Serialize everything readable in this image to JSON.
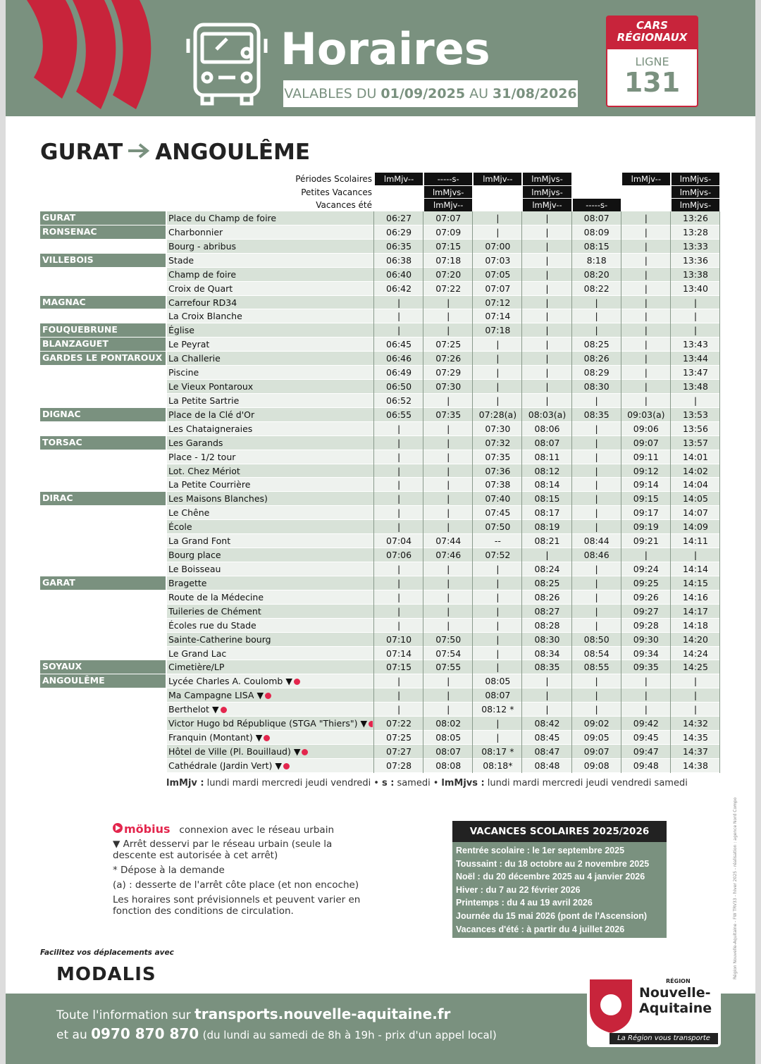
{
  "header": {
    "title": "Horaires",
    "validity": {
      "prefix": "VALABLES DU",
      "from": "01/09/2025",
      "middle": "AU",
      "to": "31/08/2026"
    },
    "badge": {
      "top": "CARS RÉGIONAUX",
      "label": "LIGNE",
      "number": "131"
    }
  },
  "route": {
    "from": "GURAT",
    "to": "ANGOULÊME"
  },
  "table": {
    "periods": [
      {
        "label": "Périodes Scolaires",
        "values": [
          "lmMjv--",
          "-----s-",
          "lmMjv--",
          "lmMjvs-",
          null,
          "lmMjv--",
          "lmMjvs-"
        ]
      },
      {
        "label": "Petites Vacances",
        "values": [
          null,
          "lmMjvs-",
          null,
          "lmMjvs-",
          null,
          null,
          "lmMjvs-"
        ]
      },
      {
        "label": "Vacances été",
        "values": [
          null,
          "lmMjv--",
          null,
          "lmMjv--",
          "-----s-",
          null,
          "lmMjvs-"
        ]
      }
    ],
    "rows": [
      {
        "town": "GURAT",
        "stop": "Place du Champ de foire",
        "times": [
          "06:27",
          "07:07",
          "|",
          "|",
          "08:07",
          "|",
          "13:26"
        ]
      },
      {
        "town": "RONSENAC",
        "stop": "Charbonnier",
        "times": [
          "06:29",
          "07:09",
          "|",
          "|",
          "08:09",
          "|",
          "13:28"
        ]
      },
      {
        "town": null,
        "stop": "Bourg - abribus",
        "times": [
          "06:35",
          "07:15",
          "07:00",
          "|",
          "08:15",
          "|",
          "13:33"
        ]
      },
      {
        "town": "VILLEBOIS",
        "stop": "Stade",
        "times": [
          "06:38",
          "07:18",
          "07:03",
          "|",
          "8:18",
          "|",
          "13:36"
        ]
      },
      {
        "town": null,
        "stop": "Champ de foire",
        "times": [
          "06:40",
          "07:20",
          "07:05",
          "|",
          "08:20",
          "|",
          "13:38"
        ]
      },
      {
        "town": null,
        "stop": "Croix de Quart",
        "times": [
          "06:42",
          "07:22",
          "07:07",
          "|",
          "08:22",
          "|",
          "13:40"
        ]
      },
      {
        "town": "MAGNAC",
        "stop": "Carrefour RD34",
        "times": [
          "|",
          "|",
          "07:12",
          "|",
          "|",
          "|",
          "|"
        ]
      },
      {
        "town": null,
        "stop": "La Croix Blanche",
        "times": [
          "|",
          "|",
          "07:14",
          "|",
          "|",
          "|",
          "|"
        ]
      },
      {
        "town": "FOUQUEBRUNE",
        "stop": "Église",
        "times": [
          "|",
          "|",
          "07:18",
          "|",
          "|",
          "|",
          "|"
        ]
      },
      {
        "town": "BLANZAGUET",
        "stop": "Le Peyrat",
        "times": [
          "06:45",
          "07:25",
          "|",
          "|",
          "08:25",
          "|",
          "13:43"
        ]
      },
      {
        "town": "GARDES LE PONTAROUX",
        "stop": "La Challerie",
        "times": [
          "06:46",
          "07:26",
          "|",
          "|",
          "08:26",
          "|",
          "13:44"
        ]
      },
      {
        "town": null,
        "stop": "Piscine",
        "times": [
          "06:49",
          "07:29",
          "|",
          "|",
          "08:29",
          "|",
          "13:47"
        ]
      },
      {
        "town": null,
        "stop": "Le Vieux Pontaroux",
        "times": [
          "06:50",
          "07:30",
          "|",
          "|",
          "08:30",
          "|",
          "13:48"
        ]
      },
      {
        "town": null,
        "stop": "La Petite Sartrie",
        "times": [
          "06:52",
          "|",
          "|",
          "|",
          "|",
          "|",
          "|"
        ]
      },
      {
        "town": "DIGNAC",
        "stop": "Place de la Clé d'Or",
        "times": [
          "06:55",
          "07:35",
          "07:28(a)",
          "08:03(a)",
          "08:35",
          "09:03(a)",
          "13:53"
        ]
      },
      {
        "town": null,
        "stop": "Les Chataigneraies",
        "times": [
          "|",
          "|",
          "07:30",
          "08:06",
          "|",
          "09:06",
          "13:56"
        ]
      },
      {
        "town": "TORSAC",
        "stop": "Les Garands",
        "times": [
          "|",
          "|",
          "07:32",
          "08:07",
          "|",
          "09:07",
          "13:57"
        ]
      },
      {
        "town": null,
        "stop": "Place - 1/2 tour",
        "times": [
          "|",
          "|",
          "07:35",
          "08:11",
          "|",
          "09:11",
          "14:01"
        ]
      },
      {
        "town": null,
        "stop": "Lot. Chez Mériot",
        "times": [
          "|",
          "|",
          "07:36",
          "08:12",
          "|",
          "09:12",
          "14:02"
        ]
      },
      {
        "town": null,
        "stop": "La Petite Courrière",
        "times": [
          "|",
          "|",
          "07:38",
          "08:14",
          "|",
          "09:14",
          "14:04"
        ]
      },
      {
        "town": "DIRAC",
        "stop": "Les Maisons Blanches)",
        "times": [
          "|",
          "|",
          "07:40",
          "08:15",
          "|",
          "09:15",
          "14:05"
        ]
      },
      {
        "town": null,
        "stop": "Le Chêne",
        "times": [
          "|",
          "|",
          "07:45",
          "08:17",
          "|",
          "09:17",
          "14:07"
        ]
      },
      {
        "town": null,
        "stop": "École",
        "times": [
          "|",
          "|",
          "07:50",
          "08:19",
          "|",
          "09:19",
          "14:09"
        ]
      },
      {
        "town": null,
        "stop": "La Grand Font",
        "times": [
          "07:04",
          "07:44",
          "--",
          "08:21",
          "08:44",
          "09:21",
          "14:11"
        ]
      },
      {
        "town": null,
        "stop": "Bourg place",
        "times": [
          "07:06",
          "07:46",
          "07:52",
          "|",
          "08:46",
          "|",
          "|"
        ]
      },
      {
        "town": null,
        "stop": "Le Boisseau",
        "times": [
          "|",
          "|",
          "|",
          "08:24",
          "|",
          "09:24",
          "14:14"
        ]
      },
      {
        "town": "GARAT",
        "stop": "Bragette",
        "times": [
          "|",
          "|",
          "|",
          "08:25",
          "|",
          "09:25",
          "14:15"
        ]
      },
      {
        "town": null,
        "stop": "Route de la Médecine",
        "times": [
          "|",
          "|",
          "|",
          "08:26",
          "|",
          "09:26",
          "14:16"
        ]
      },
      {
        "town": null,
        "stop": "Tuileries de Chément",
        "times": [
          "|",
          "|",
          "|",
          "08:27",
          "|",
          "09:27",
          "14:17"
        ]
      },
      {
        "town": null,
        "stop": "Écoles rue du Stade",
        "times": [
          "|",
          "|",
          "|",
          "08:28",
          "|",
          "09:28",
          "14:18"
        ]
      },
      {
        "town": null,
        "stop": "Sainte-Catherine bourg",
        "times": [
          "07:10",
          "07:50",
          "|",
          "08:30",
          "08:50",
          "09:30",
          "14:20"
        ]
      },
      {
        "town": null,
        "stop": "Le Grand Lac",
        "times": [
          "07:14",
          "07:54",
          "|",
          "08:34",
          "08:54",
          "09:34",
          "14:24"
        ]
      },
      {
        "town": "SOYAUX",
        "stop": "Cimetière/LP",
        "times": [
          "07:15",
          "07:55",
          "|",
          "08:35",
          "08:55",
          "09:35",
          "14:25"
        ]
      },
      {
        "town": "ANGOULÊME",
        "stop": "Lycée Charles A. Coulomb",
        "mark": "▼",
        "times": [
          "|",
          "|",
          "08:05",
          "|",
          "|",
          "|",
          "|"
        ]
      },
      {
        "town": null,
        "stop": "Ma Campagne LISA",
        "mark": "▼",
        "times": [
          "|",
          "|",
          "08:07",
          "|",
          "|",
          "|",
          "|"
        ]
      },
      {
        "town": null,
        "stop": "Berthelot",
        "mark": "▼",
        "times": [
          "|",
          "|",
          "08:12 *",
          "|",
          "|",
          "|",
          "|"
        ]
      },
      {
        "town": null,
        "stop": "Victor Hugo bd République (STGA \"Thiers\")",
        "mark": "▼",
        "times": [
          "07:22",
          "08:02",
          "|",
          "08:42",
          "09:02",
          "09:42",
          "14:32"
        ]
      },
      {
        "town": null,
        "stop": "Franquin (Montant)",
        "mark": "▼",
        "times": [
          "07:25",
          "08:05",
          "|",
          "08:45",
          "09:05",
          "09:45",
          "14:35"
        ]
      },
      {
        "town": null,
        "stop": "Hôtel de Ville (Pl. Bouillaud)",
        "mark": "▼",
        "times": [
          "07:27",
          "08:07",
          "08:17 *",
          "08:47",
          "09:07",
          "09:47",
          "14:37"
        ]
      },
      {
        "town": null,
        "stop": "Cathédrale (Jardin Vert)",
        "mark": "▼",
        "times": [
          "07:28",
          "08:08",
          "08:18*",
          "08:48",
          "09:08",
          "09:48",
          "14:38"
        ]
      }
    ]
  },
  "legend": [
    {
      "key": "lmMjv :",
      "text": "lundi mardi mercredi jeudi vendredi"
    },
    {
      "key": "s :",
      "text": "samedi"
    },
    {
      "key": "lmMjvs :",
      "text": "lundi mardi mercredi jeudi vendredi samedi"
    }
  ],
  "notes": {
    "mobius": "möbius",
    "mobius_text": "connexion avec le réseau urbain",
    "lines": [
      "▼ Arrêt desservi par le réseau urbain (seule la descente est autorisée à cet arrêt)",
      "* Dépose à la demande",
      "(a) : desserte de l'arrêt côte place (et non encoche)",
      "Les horaires sont prévisionnels et peuvent varier en fonction des conditions de circulation."
    ]
  },
  "holidays": {
    "title": "VACANCES SCOLAIRES 2025/2026",
    "items": [
      "Rentrée scolaire : le 1er septembre 2025",
      "Toussaint : du 18 octobre au 2 novembre 2025",
      "Noël : du 20 décembre 2025 au 4 janvier 2026",
      "Hiver : du 7 au 22 février 2026",
      "Printemps : du 4 au 19 avril 2026",
      "Journée du 15 mai 2026 (pont de l'Ascension)",
      "Vacances d'été : à partir du 4 juillet 2026"
    ]
  },
  "footer": {
    "promo": "Facilitez vos déplacements avec",
    "modalis": "MODALIS",
    "info_prefix": "Toute l'information sur",
    "url": "transports.nouvelle-aquitaine.fr",
    "phone_prefix": "et au",
    "phone": "0970 870 870",
    "phone_hours": "(du lundi au samedi de 8h à 19h - prix d'un appel local)",
    "credit": "Région Nouvelle-Aquitaine - FW TRV33 - hiver 2025 - réalisation : agence Nord Compo",
    "region": {
      "small": "RÉGION",
      "line1": "Nouvelle-",
      "line2": "Aquitaine",
      "slogan": "La Région vous transporte"
    }
  }
}
